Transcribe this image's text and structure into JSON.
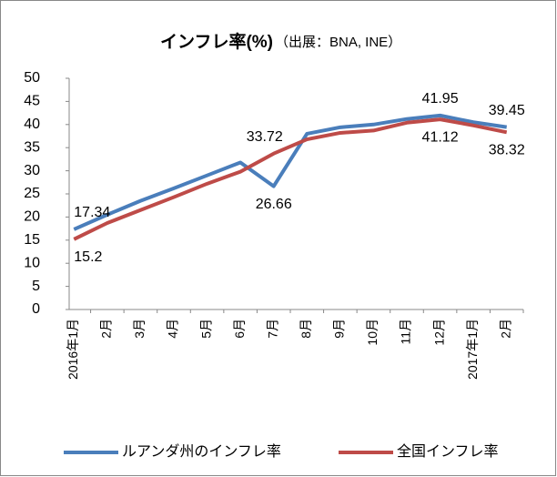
{
  "chart_data": {
    "type": "line",
    "title": "インフレ率(%)",
    "subtitle": "（出展：BNA, INE）",
    "categories": [
      "2016年1月",
      "2月",
      "3月",
      "4月",
      "5月",
      "6月",
      "7月",
      "8月",
      "9月",
      "10月",
      "11月",
      "12月",
      "2017年1月",
      "2月"
    ],
    "series": [
      {
        "name": "ルアンダ州のインフレ率",
        "color": "#4a7ebb",
        "values": [
          17.34,
          20.5,
          23.5,
          26.2,
          29,
          31.8,
          26.66,
          38,
          39.4,
          40,
          41.2,
          41.95,
          40.5,
          39.45
        ],
        "value_labels": [
          "17.34",
          null,
          null,
          null,
          null,
          null,
          "26.66",
          null,
          null,
          null,
          null,
          "41.95",
          null,
          "39.45"
        ]
      },
      {
        "name": "全国インフレ率",
        "color": "#be4b48",
        "values": [
          15.2,
          18.7,
          21.5,
          24.3,
          27.2,
          29.8,
          33.72,
          36.8,
          38.2,
          38.7,
          40.4,
          41.12,
          39.8,
          38.32
        ],
        "value_labels": [
          "15.2",
          null,
          null,
          null,
          null,
          null,
          "33.72",
          null,
          null,
          null,
          null,
          "41.12",
          null,
          "38.32"
        ]
      }
    ],
    "ylim": [
      0,
      50
    ],
    "yticks": [
      0,
      5,
      10,
      15,
      20,
      25,
      30,
      35,
      40,
      45,
      50
    ],
    "grid": false,
    "legend": "bottom"
  }
}
